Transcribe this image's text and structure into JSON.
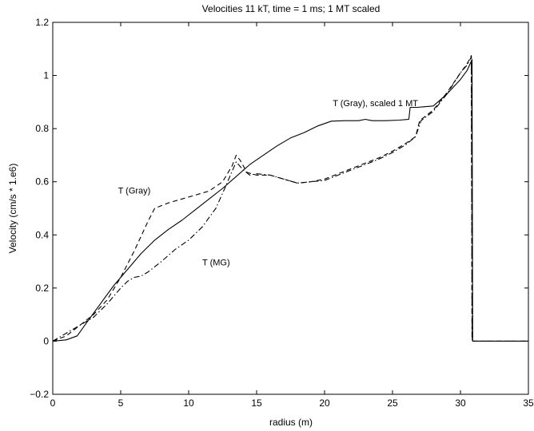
{
  "chart_data": {
    "type": "line",
    "title": "Velocities 11 kT, time = 1 ms; 1 MT scaled",
    "xlabel": "radius  (m)",
    "ylabel": "Velocity  (cm/s * 1.e6)",
    "xlim": [
      0,
      35
    ],
    "ylim": [
      -0.2,
      1.2
    ],
    "xticks": [
      0,
      5,
      10,
      15,
      20,
      25,
      30,
      35
    ],
    "xtick_labels": [
      "0",
      "5",
      "10",
      "15",
      "20",
      "25",
      "30",
      "35"
    ],
    "yticks": [
      -0.2,
      0,
      0.2,
      0.4,
      0.6,
      0.8,
      1,
      1.2
    ],
    "ytick_labels": [
      "−0.2",
      "0",
      "0.2",
      "0.4",
      "0.6",
      "0.8",
      "1",
      "1.2"
    ],
    "grid": false,
    "series": [
      {
        "name": "T (Gray), scaled 1 MT",
        "style": "solid",
        "color": "#000000",
        "x": [
          0,
          1,
          1.8,
          2.5,
          3.5,
          4.5,
          5.5,
          6.5,
          7.5,
          8.5,
          9.5,
          10.5,
          11.5,
          12.5,
          13.5,
          14.5,
          15.5,
          16.5,
          17.5,
          18.5,
          19.5,
          20.5,
          21.5,
          22.5,
          23,
          23.5,
          24.5,
          25.5,
          26.2,
          26.3,
          26.8,
          27.3,
          28,
          29,
          30,
          30.5,
          30.85,
          30.9,
          35
        ],
        "y": [
          0,
          0.005,
          0.02,
          0.07,
          0.14,
          0.21,
          0.27,
          0.33,
          0.38,
          0.42,
          0.455,
          0.495,
          0.535,
          0.575,
          0.62,
          0.665,
          0.7,
          0.735,
          0.765,
          0.785,
          0.81,
          0.828,
          0.83,
          0.83,
          0.835,
          0.83,
          0.83,
          0.832,
          0.835,
          0.88,
          0.88,
          0.882,
          0.885,
          0.93,
          0.985,
          1.02,
          1.06,
          0,
          0
        ]
      },
      {
        "name": "T (Gray)",
        "style": "dashed",
        "color": "#000000",
        "x": [
          0,
          1,
          2,
          3,
          4,
          5,
          6,
          7,
          7.5,
          8.5,
          9.5,
          10.5,
          11.5,
          12.5,
          13.2,
          13.5,
          13.8,
          14.3,
          15,
          16,
          17,
          18,
          19,
          20,
          21,
          22,
          23,
          24,
          25,
          26,
          26.7,
          27,
          28,
          29,
          30,
          30.5,
          30.8,
          30.85,
          35
        ],
        "y": [
          0,
          0.02,
          0.06,
          0.1,
          0.155,
          0.24,
          0.34,
          0.45,
          0.5,
          0.52,
          0.535,
          0.55,
          0.565,
          0.6,
          0.66,
          0.7,
          0.68,
          0.635,
          0.625,
          0.625,
          0.61,
          0.595,
          0.6,
          0.61,
          0.63,
          0.65,
          0.67,
          0.69,
          0.715,
          0.745,
          0.77,
          0.83,
          0.87,
          0.935,
          1.01,
          1.045,
          1.075,
          0,
          0
        ]
      },
      {
        "name": "T (MG)",
        "style": "dashdot",
        "color": "#000000",
        "x": [
          0,
          1,
          2,
          3,
          4,
          5,
          5.5,
          6,
          6.5,
          7,
          8,
          9,
          10,
          11,
          12,
          12.7,
          13.2,
          13.5,
          14,
          14.5,
          15,
          16,
          17,
          18,
          19,
          20,
          21,
          22,
          23,
          24,
          25,
          26,
          26.7,
          27.1,
          28,
          29,
          30,
          30.5,
          30.8,
          30.85,
          35
        ],
        "y": [
          0,
          0.03,
          0.06,
          0.09,
          0.14,
          0.2,
          0.225,
          0.24,
          0.245,
          0.26,
          0.3,
          0.345,
          0.38,
          0.43,
          0.5,
          0.58,
          0.64,
          0.675,
          0.645,
          0.625,
          0.63,
          0.625,
          0.61,
          0.595,
          0.6,
          0.605,
          0.625,
          0.645,
          0.665,
          0.685,
          0.71,
          0.74,
          0.77,
          0.83,
          0.865,
          0.93,
          1.01,
          1.04,
          1.07,
          0,
          0
        ]
      }
    ],
    "annotations": [
      {
        "text": "T (Gray), scaled 1 MT",
        "x": 20.6,
        "y": 0.885
      },
      {
        "text": "T (Gray)",
        "x": 4.8,
        "y": 0.555
      },
      {
        "text": "T (MG)",
        "x": 11.0,
        "y": 0.285
      }
    ]
  }
}
